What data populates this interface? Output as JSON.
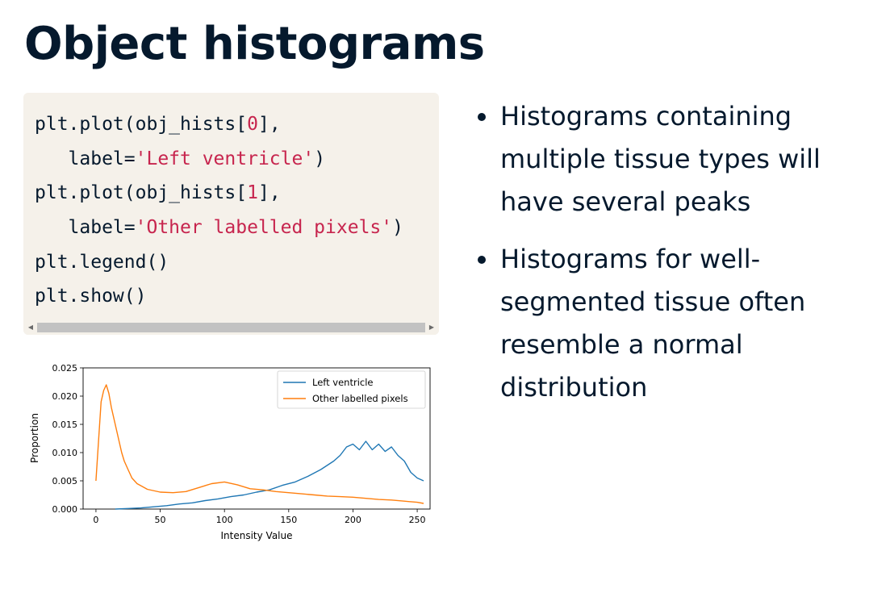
{
  "slide": {
    "title": "Object histograms"
  },
  "code": {
    "lines": [
      [
        {
          "t": "plt.plot(obj_hists["
        },
        {
          "t": "0",
          "c": "num"
        },
        {
          "t": "],"
        }
      ],
      [
        {
          "t": "   label="
        },
        {
          "t": "'Left ventricle'",
          "c": "str"
        },
        {
          "t": ")"
        }
      ],
      [
        {
          "t": "plt.plot(obj_hists["
        },
        {
          "t": "1",
          "c": "num"
        },
        {
          "t": "],"
        }
      ],
      [
        {
          "t": "   label="
        },
        {
          "t": "'Other labelled pixels'",
          "c": "str"
        },
        {
          "t": ")"
        }
      ],
      [
        {
          "t": "plt.legend()"
        }
      ],
      [
        {
          "t": "plt.show()"
        }
      ]
    ]
  },
  "bullets": [
    "Histograms containing multiple tissue types will have several peaks",
    "Histograms for well-segmented tissue often resemble a normal distribution"
  ],
  "colors": {
    "series_blue": "#1f77b4",
    "series_orange": "#ff7f0e",
    "code_bg": "#f5f1ea",
    "code_string": "#c7254e",
    "text": "#05192d"
  },
  "chart_data": {
    "type": "line",
    "xlabel": "Intensity Value",
    "ylabel": "Proportion",
    "xlim": [
      -10,
      260
    ],
    "ylim": [
      0,
      0.025
    ],
    "xticks": [
      0,
      50,
      100,
      150,
      200,
      250
    ],
    "yticks": [
      "0.000",
      "0.005",
      "0.010",
      "0.015",
      "0.020",
      "0.025"
    ],
    "legend_position": "top-right",
    "series": [
      {
        "name": "Left ventricle",
        "color": "#1f77b4",
        "x": [
          15,
          25,
          35,
          45,
          55,
          65,
          75,
          85,
          95,
          105,
          115,
          125,
          135,
          145,
          155,
          165,
          175,
          185,
          190,
          195,
          200,
          205,
          210,
          215,
          220,
          225,
          230,
          235,
          240,
          245,
          250,
          255
        ],
        "y": [
          0.0,
          0.0001,
          0.0002,
          0.0004,
          0.0006,
          0.0009,
          0.0011,
          0.0015,
          0.0018,
          0.0022,
          0.0025,
          0.003,
          0.0034,
          0.0042,
          0.0048,
          0.0058,
          0.007,
          0.0085,
          0.0095,
          0.011,
          0.0115,
          0.0105,
          0.012,
          0.0105,
          0.0115,
          0.0102,
          0.011,
          0.0095,
          0.0085,
          0.0065,
          0.0055,
          0.005
        ]
      },
      {
        "name": "Other labelled pixels",
        "color": "#ff7f0e",
        "x": [
          0,
          2,
          4,
          6,
          8,
          10,
          12,
          14,
          16,
          18,
          20,
          22,
          25,
          28,
          32,
          36,
          40,
          50,
          60,
          70,
          80,
          90,
          100,
          110,
          120,
          130,
          140,
          150,
          160,
          170,
          180,
          190,
          200,
          210,
          220,
          230,
          240,
          250,
          255
        ],
        "y": [
          0.005,
          0.012,
          0.019,
          0.021,
          0.022,
          0.0205,
          0.018,
          0.016,
          0.014,
          0.012,
          0.01,
          0.0085,
          0.007,
          0.0055,
          0.0045,
          0.004,
          0.0035,
          0.003,
          0.0029,
          0.0031,
          0.0038,
          0.0045,
          0.0048,
          0.0043,
          0.0036,
          0.0034,
          0.0031,
          0.0029,
          0.0027,
          0.0025,
          0.0023,
          0.0022,
          0.0021,
          0.0019,
          0.0017,
          0.0016,
          0.0014,
          0.0012,
          0.001
        ]
      }
    ]
  }
}
